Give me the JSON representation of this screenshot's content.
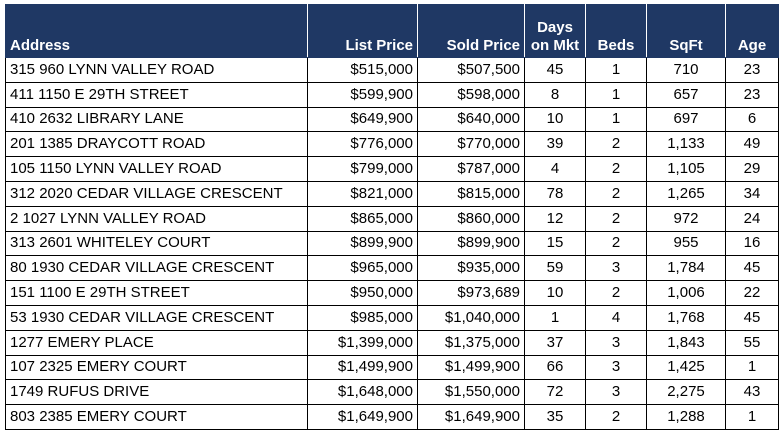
{
  "headers": {
    "address": "Address",
    "list_price": "List Price",
    "sold_price": "Sold Price",
    "days_line1": "Days",
    "days_line2": "on Mkt",
    "beds": "Beds",
    "sqft": "SqFt",
    "age": "Age"
  },
  "colors": {
    "header_bg": "#1f3864",
    "header_text": "#ffffff",
    "border": "#000000"
  },
  "rows": [
    {
      "address": "315 960 LYNN VALLEY ROAD",
      "list": "$515,000",
      "sold": "$507,500",
      "days": "45",
      "beds": "1",
      "sqft": "710",
      "age": "23"
    },
    {
      "address": "411 1150 E 29TH STREET",
      "list": "$599,900",
      "sold": "$598,000",
      "days": "8",
      "beds": "1",
      "sqft": "657",
      "age": "23"
    },
    {
      "address": "410 2632 LIBRARY LANE",
      "list": "$649,900",
      "sold": "$640,000",
      "days": "10",
      "beds": "1",
      "sqft": "697",
      "age": "6"
    },
    {
      "address": "201 1385 DRAYCOTT ROAD",
      "list": "$776,000",
      "sold": "$770,000",
      "days": "39",
      "beds": "2",
      "sqft": "1,133",
      "age": "49"
    },
    {
      "address": "105 1150 LYNN VALLEY ROAD",
      "list": "$799,000",
      "sold": "$787,000",
      "days": "4",
      "beds": "2",
      "sqft": "1,105",
      "age": "29"
    },
    {
      "address": "312 2020 CEDAR VILLAGE CRESCENT",
      "list": "$821,000",
      "sold": "$815,000",
      "days": "78",
      "beds": "2",
      "sqft": "1,265",
      "age": "34"
    },
    {
      "address": "2 1027 LYNN VALLEY ROAD",
      "list": "$865,000",
      "sold": "$860,000",
      "days": "12",
      "beds": "2",
      "sqft": "972",
      "age": "24"
    },
    {
      "address": "313 2601 WHITELEY COURT",
      "list": "$899,900",
      "sold": "$899,900",
      "days": "15",
      "beds": "2",
      "sqft": "955",
      "age": "16"
    },
    {
      "address": "80 1930 CEDAR VILLAGE CRESCENT",
      "list": "$965,000",
      "sold": "$935,000",
      "days": "59",
      "beds": "3",
      "sqft": "1,784",
      "age": "45"
    },
    {
      "address": "151 1100 E 29TH STREET",
      "list": "$950,000",
      "sold": "$973,689",
      "days": "10",
      "beds": "2",
      "sqft": "1,006",
      "age": "22"
    },
    {
      "address": "53 1930 CEDAR VILLAGE CRESCENT",
      "list": "$985,000",
      "sold": "$1,040,000",
      "days": "1",
      "beds": "4",
      "sqft": "1,768",
      "age": "45"
    },
    {
      "address": "1277 EMERY PLACE",
      "list": "$1,399,000",
      "sold": "$1,375,000",
      "days": "37",
      "beds": "3",
      "sqft": "1,843",
      "age": "55"
    },
    {
      "address": "107 2325 EMERY COURT",
      "list": "$1,499,900",
      "sold": "$1,499,900",
      "days": "66",
      "beds": "3",
      "sqft": "1,425",
      "age": "1"
    },
    {
      "address": "1749 RUFUS DRIVE",
      "list": "$1,648,000",
      "sold": "$1,550,000",
      "days": "72",
      "beds": "3",
      "sqft": "2,275",
      "age": "43"
    },
    {
      "address": "803 2385 EMERY COURT",
      "list": "$1,649,900",
      "sold": "$1,649,900",
      "days": "35",
      "beds": "2",
      "sqft": "1,288",
      "age": "1"
    }
  ]
}
